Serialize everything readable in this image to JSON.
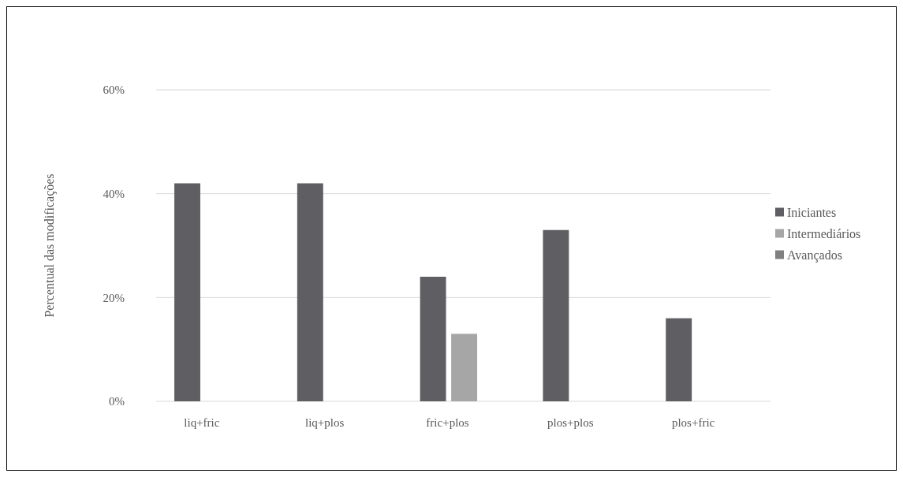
{
  "chart_data": {
    "type": "bar",
    "ylabel": "Percentual das modificações",
    "categories": [
      "liq+fric",
      "liq+plos",
      "fric+plos",
      "plos+plos",
      "plos+fric"
    ],
    "series": [
      {
        "name": "Iniciantes",
        "color": "#5f5e62",
        "values": [
          42,
          42,
          24,
          33,
          16
        ]
      },
      {
        "name": "Intermediários",
        "color": "#a6a6a6",
        "values": [
          0,
          0,
          13,
          0,
          0
        ]
      },
      {
        "name": "Avançados",
        "color": "#7f7f7f",
        "values": [
          0,
          0,
          0,
          0,
          0
        ]
      }
    ],
    "ylim": [
      0,
      60
    ],
    "yticks": [
      {
        "value": 0,
        "label": "0%"
      },
      {
        "value": 20,
        "label": "20%"
      },
      {
        "value": 40,
        "label": "40%"
      },
      {
        "value": 60,
        "label": "60%"
      }
    ],
    "grid": "y",
    "legend": "right"
  }
}
